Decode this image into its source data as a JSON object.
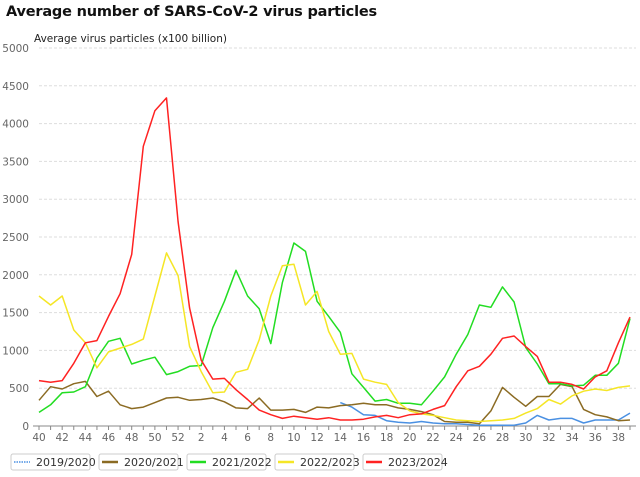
{
  "title": "Average number of SARS-CoV-2 virus particles",
  "chart_data": {
    "type": "line",
    "title": "Average number of SARS-CoV-2 virus particles",
    "ylabel": "Average virus particles (x100 billion)",
    "xlabel": "",
    "ylim": [
      0,
      5000
    ],
    "yticks": [
      0,
      500,
      1000,
      1500,
      2000,
      2500,
      3000,
      3500,
      4000,
      4500,
      5000
    ],
    "grid": true,
    "legend_placement": "bottom",
    "x": [
      40,
      41,
      42,
      43,
      44,
      45,
      46,
      47,
      48,
      49,
      50,
      51,
      52,
      1,
      2,
      3,
      4,
      5,
      6,
      7,
      8,
      9,
      10,
      11,
      12,
      13,
      14,
      15,
      16,
      17,
      18,
      19,
      20,
      21,
      22,
      23,
      24,
      25,
      26,
      27,
      28,
      29,
      30,
      31,
      32,
      33,
      34,
      35,
      36,
      37,
      38,
      39
    ],
    "xtick_labels": [
      "40",
      "42",
      "44",
      "46",
      "48",
      "50",
      "52",
      "2",
      "4",
      "6",
      "8",
      "10",
      "12",
      "14",
      "16",
      "18",
      "20",
      "22",
      "24",
      "26",
      "28",
      "30",
      "32",
      "34",
      "36",
      "38"
    ],
    "series": [
      {
        "name": "2019/2020",
        "color": "#4a90e2",
        "dashed": true,
        "values": [
          null,
          null,
          null,
          null,
          null,
          null,
          null,
          null,
          null,
          null,
          null,
          null,
          null,
          null,
          null,
          null,
          null,
          null,
          null,
          null,
          null,
          null,
          null,
          null,
          null,
          null,
          310,
          250,
          150,
          140,
          70,
          50,
          40,
          60,
          40,
          30,
          30,
          20,
          10,
          10,
          10,
          10,
          40,
          140,
          80,
          100,
          100,
          40,
          80,
          80,
          80,
          170
        ]
      },
      {
        "name": "2020/2021",
        "color": "#8b6b23",
        "values": [
          340,
          520,
          490,
          560,
          590,
          390,
          460,
          280,
          230,
          250,
          310,
          370,
          380,
          340,
          350,
          370,
          320,
          240,
          230,
          370,
          210,
          210,
          220,
          180,
          250,
          240,
          270,
          280,
          300,
          280,
          280,
          240,
          220,
          190,
          150,
          60,
          50,
          50,
          30,
          200,
          510,
          380,
          260,
          390,
          390,
          550,
          520,
          220,
          150,
          120,
          70,
          80
        ]
      },
      {
        "name": "2021/2022",
        "color": "#22dd22",
        "values": [
          180,
          280,
          440,
          450,
          520,
          900,
          1120,
          1160,
          820,
          870,
          910,
          680,
          720,
          790,
          800,
          1300,
          1650,
          2060,
          1720,
          1550,
          1090,
          1900,
          2420,
          2310,
          1650,
          1450,
          1240,
          690,
          510,
          330,
          350,
          300,
          300,
          280,
          460,
          650,
          950,
          1210,
          1600,
          1570,
          1840,
          1640,
          1040,
          820,
          560,
          560,
          530,
          540,
          670,
          670,
          830,
          1420
        ]
      },
      {
        "name": "2022/2023",
        "color": "#f5e626",
        "values": [
          1720,
          1600,
          1720,
          1270,
          1100,
          770,
          980,
          1030,
          1080,
          1150,
          1720,
          2290,
          1990,
          1050,
          720,
          440,
          450,
          710,
          750,
          1140,
          1720,
          2120,
          2140,
          1600,
          1780,
          1250,
          950,
          960,
          620,
          580,
          550,
          310,
          200,
          160,
          140,
          110,
          80,
          70,
          60,
          70,
          80,
          100,
          170,
          230,
          350,
          290,
          400,
          460,
          490,
          470,
          510,
          530
        ]
      },
      {
        "name": "2023/2024",
        "color": "#ff2222",
        "values": [
          600,
          580,
          600,
          830,
          1100,
          1130,
          1450,
          1750,
          2270,
          3700,
          4170,
          4340,
          2700,
          1560,
          870,
          620,
          630,
          480,
          350,
          210,
          150,
          100,
          130,
          110,
          90,
          110,
          80,
          80,
          90,
          120,
          140,
          110,
          150,
          160,
          220,
          270,
          520,
          730,
          790,
          950,
          1160,
          1190,
          1050,
          920,
          580,
          580,
          550,
          490,
          650,
          730,
          1100,
          1440
        ]
      }
    ]
  }
}
